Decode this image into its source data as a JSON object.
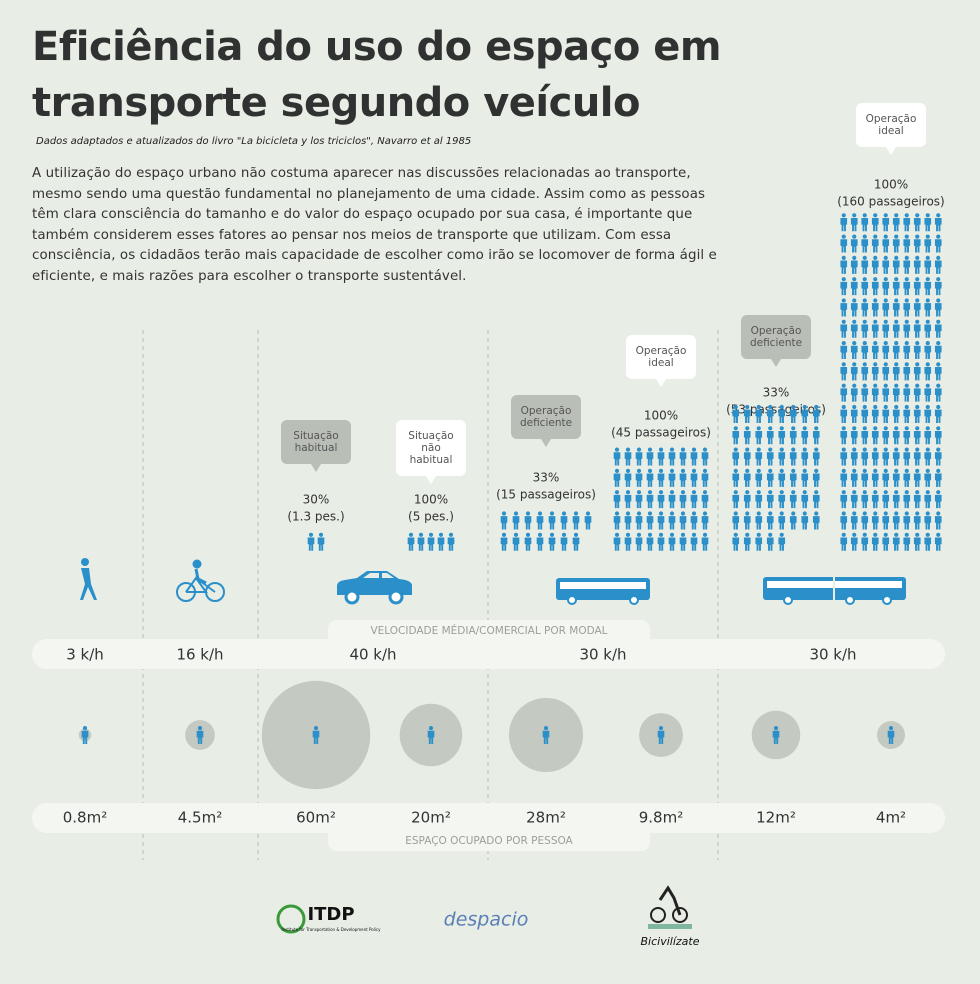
{
  "header": {
    "title_lines": [
      "Eficiência do uso do espaço em",
      "transporte segundo veículo"
    ],
    "source": "Dados adaptados e atualizados do livro \"La bicicleta y los triciclos\", Navarro et al 1985",
    "intro": "A utilização do espaço urbano não costuma aparecer nas discussões relacionadas ao transporte, mesmo sendo uma questão fundamental no planejamento de uma cidade. Assim como as pessoas têm clara consciência do tamanho e do valor do espaço ocupado por sua casa, é importante que também considerem esses fatores ao pensar nos meios de transporte que utilizam. Com essa consciência, os cidadãos terão mais capacidade de escolher como irão se locomover de forma ágil e eficiente, e mais razões para escolher o transporte sustentável."
  },
  "speed_label": "VELOCIDADE MÉDIA/COMERCIAL POR MODAL",
  "speeds": [
    "3 k/h",
    "16 k/h",
    "40 k/h",
    "30 k/h",
    "30 k/h"
  ],
  "area_title": "ESPAÇO OCUPADO POR PESSOA",
  "icon_color": "#2b8fc9",
  "circle_color": "#c4c9c2",
  "modes": [
    {
      "area": 0.8,
      "area_label": "0.8m²"
    },
    {
      "area": 4.5,
      "area_label": "4.5m²"
    },
    {
      "situation": [
        "Situação",
        "habitual"
      ],
      "bubble_color": "#b9beb7",
      "occupancy": "30%",
      "passengers": "(1.3 pes.)",
      "passenger_count": 1.3,
      "area": 60,
      "area_label": "60m²"
    },
    {
      "situation": [
        "Situação",
        "não",
        "habitual"
      ],
      "bubble_color": "#ffffff",
      "occupancy": "100%",
      "passengers": "(5 pes.)",
      "passenger_count": 5,
      "area": 20,
      "area_label": "20m²"
    },
    {
      "situation": [
        "Operação",
        "deficiente"
      ],
      "bubble_color": "#b9beb7",
      "occupancy": "33%",
      "passengers": "(15 passageiros)",
      "passenger_count": 15,
      "area": 28,
      "area_label": "28m²"
    },
    {
      "situation": [
        "Operação",
        "ideal"
      ],
      "bubble_color": "#ffffff",
      "occupancy": "100%",
      "passengers": "(45 passageiros)",
      "passenger_count": 45,
      "area": 9.8,
      "area_label": "9.8m²"
    },
    {
      "situation": [
        "Operação",
        "deficiente"
      ],
      "bubble_color": "#b9beb7",
      "occupancy": "33%",
      "passengers": "(53 passageiros)",
      "passenger_count": 53,
      "area": 12,
      "area_label": "12m²"
    },
    {
      "situation": [
        "Operação",
        "ideal"
      ],
      "bubble_color": "#ffffff",
      "occupancy": "100%",
      "passengers": "(160 passageiros)",
      "passenger_count": 160,
      "area": 4,
      "area_label": "4m²"
    }
  ],
  "logos": {
    "itdp": "ITDP",
    "itdp_sub": "Institute for Transportation & Development Policy",
    "despacio": "despacio",
    "bici": "Bicivilízate"
  }
}
